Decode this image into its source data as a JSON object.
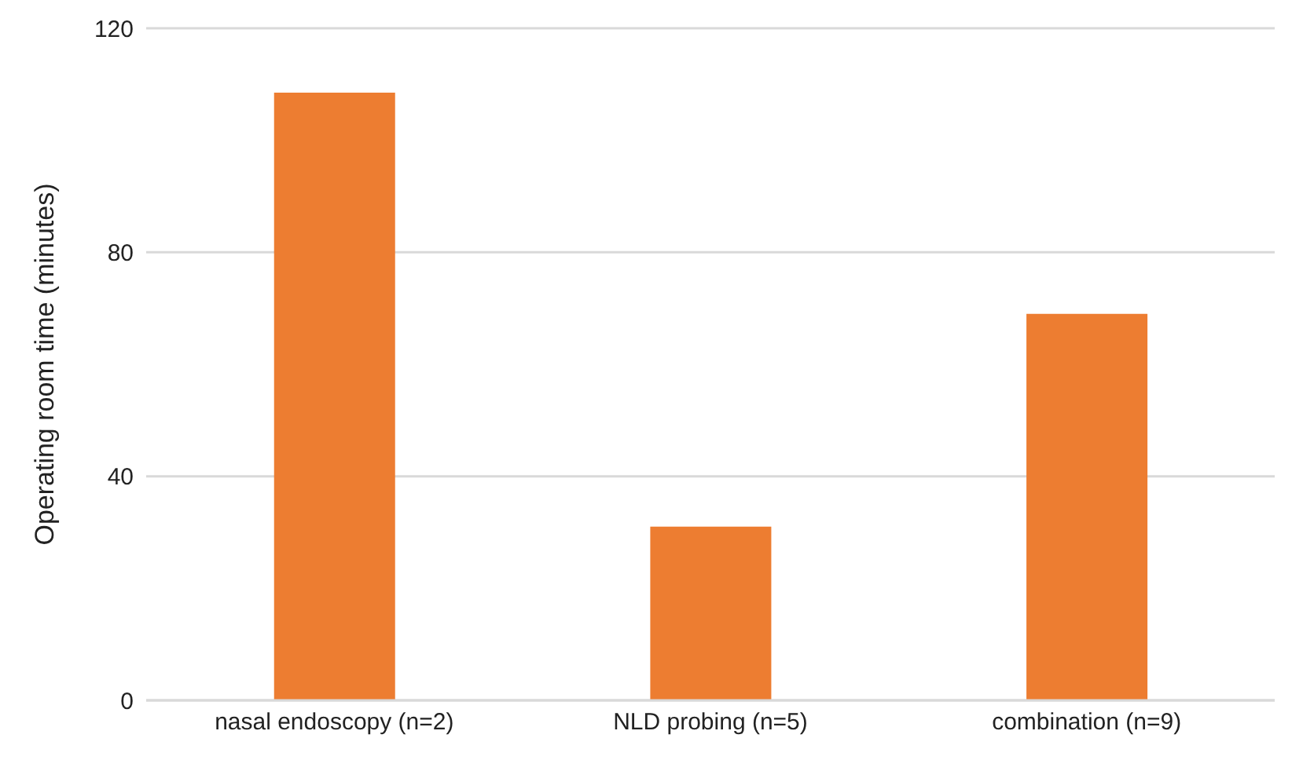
{
  "chart_data": {
    "type": "bar",
    "ylabel": "Operating room time (minutes)",
    "categories": [
      "nasal endoscopy (n=2)",
      "NLD probing (n=5)",
      "combination (n=9)"
    ],
    "values": [
      108.5,
      31,
      69
    ],
    "color": "#ed7d31",
    "ylim": [
      0,
      120
    ],
    "yticks": [
      0,
      40,
      80,
      120
    ],
    "grid": "y"
  }
}
